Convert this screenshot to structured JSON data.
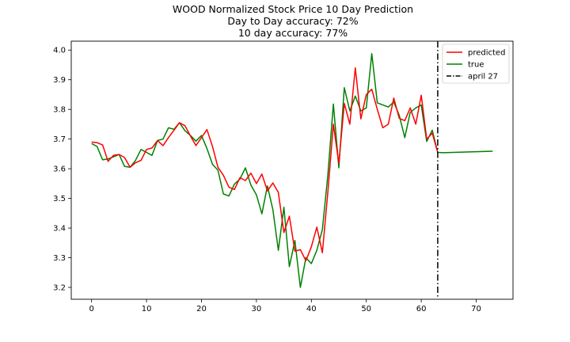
{
  "chart_data": {
    "type": "line",
    "title": "WOOD Normalized Stock Price 10 Day Prediction",
    "subtitle_lines": [
      "Day to Day accuracy: 72%",
      "10 day accuracy: 77%"
    ],
    "xlabel": "",
    "ylabel": "",
    "xlim": [
      -3.7,
      76.7
    ],
    "ylim": [
      3.16,
      4.03
    ],
    "xticks": [
      0,
      10,
      20,
      30,
      40,
      50,
      60,
      70
    ],
    "yticks": [
      3.2,
      3.3,
      3.4,
      3.5,
      3.6,
      3.7,
      3.8,
      3.9,
      4.0
    ],
    "ytick_labels": [
      "3.2",
      "3.3",
      "3.4",
      "3.5",
      "3.6",
      "3.7",
      "3.8",
      "3.9",
      "4.0"
    ],
    "grid": false,
    "legend_position": "top-right",
    "series": [
      {
        "name": "predicted",
        "color": "#ff0000",
        "x": [
          0,
          1,
          2,
          3,
          4,
          5,
          6,
          7,
          8,
          9,
          10,
          11,
          12,
          13,
          14,
          15,
          16,
          17,
          18,
          19,
          20,
          21,
          22,
          23,
          24,
          25,
          26,
          27,
          28,
          29,
          30,
          31,
          32,
          33,
          34,
          35,
          36,
          37,
          38,
          39,
          40,
          41,
          42,
          43,
          44,
          45,
          46,
          47,
          48,
          49,
          50,
          51,
          52,
          53,
          54,
          55,
          56,
          57,
          58,
          59,
          60,
          61,
          62,
          63
        ],
        "y": [
          3.69,
          3.688,
          3.68,
          3.625,
          3.645,
          3.648,
          3.638,
          3.605,
          3.62,
          3.628,
          3.665,
          3.67,
          3.695,
          3.678,
          3.705,
          3.73,
          3.755,
          3.745,
          3.71,
          3.678,
          3.705,
          3.732,
          3.675,
          3.605,
          3.578,
          3.538,
          3.53,
          3.57,
          3.56,
          3.585,
          3.55,
          3.582,
          3.525,
          3.552,
          3.52,
          3.385,
          3.44,
          3.322,
          3.327,
          3.29,
          3.337,
          3.403,
          3.317,
          3.52,
          3.75,
          3.618,
          3.82,
          3.75,
          3.94,
          3.768,
          3.85,
          3.868,
          3.8,
          3.738,
          3.75,
          3.838,
          3.77,
          3.762,
          3.805,
          3.75,
          3.848,
          3.7,
          3.72,
          3.655
        ]
      },
      {
        "name": "true",
        "color": "#008000",
        "x": [
          0,
          1,
          2,
          3,
          4,
          5,
          6,
          7,
          8,
          9,
          10,
          11,
          12,
          13,
          14,
          15,
          16,
          17,
          18,
          19,
          20,
          21,
          22,
          23,
          24,
          25,
          26,
          27,
          28,
          29,
          30,
          31,
          32,
          33,
          34,
          35,
          36,
          37,
          38,
          39,
          40,
          41,
          42,
          43,
          44,
          45,
          46,
          47,
          48,
          49,
          50,
          51,
          52,
          53,
          54,
          55,
          56,
          57,
          58,
          59,
          60,
          61,
          62,
          63,
          64,
          73
        ],
        "y": [
          3.685,
          3.675,
          3.63,
          3.633,
          3.64,
          3.648,
          3.608,
          3.605,
          3.628,
          3.665,
          3.655,
          3.645,
          3.695,
          3.7,
          3.738,
          3.733,
          3.755,
          3.728,
          3.712,
          3.693,
          3.712,
          3.668,
          3.615,
          3.595,
          3.515,
          3.508,
          3.548,
          3.565,
          3.603,
          3.545,
          3.512,
          3.448,
          3.542,
          3.462,
          3.325,
          3.47,
          3.27,
          3.358,
          3.2,
          3.3,
          3.28,
          3.325,
          3.395,
          3.578,
          3.818,
          3.603,
          3.873,
          3.795,
          3.845,
          3.795,
          3.805,
          3.988,
          3.822,
          3.815,
          3.808,
          3.825,
          3.78,
          3.705,
          3.79,
          3.805,
          3.815,
          3.692,
          3.73,
          3.655,
          3.654,
          3.659
        ]
      }
    ],
    "vline": {
      "x": 63,
      "label": "april 27",
      "color": "#000000",
      "style": "dashdot"
    }
  }
}
